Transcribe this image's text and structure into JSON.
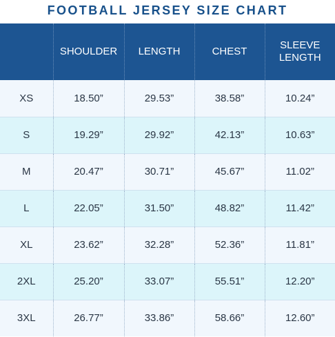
{
  "title": "FOOTBALL JERSEY SIZE CHART",
  "colors": {
    "title": "#17508a",
    "header_bg": "#1d5592",
    "row_light": "#f1f7fd",
    "row_cyan": "#dcf5fa"
  },
  "table": {
    "headers": [
      "",
      "SHOULDER",
      "LENGTH",
      "CHEST",
      "SLEEVE\nLENGTH"
    ],
    "header_lines": [
      [
        ""
      ],
      [
        "SHOULDER"
      ],
      [
        "LENGTH"
      ],
      [
        "CHEST"
      ],
      [
        "SLEEVE",
        "LENGTH"
      ]
    ],
    "rows": [
      [
        "XS",
        "18.50”",
        "29.53”",
        "38.58”",
        "10.24”"
      ],
      [
        "S",
        "19.29”",
        "29.92”",
        "42.13”",
        "10.63”"
      ],
      [
        "M",
        "20.47”",
        "30.71”",
        "45.67”",
        "11.02”"
      ],
      [
        "L",
        "22.05”",
        "31.50”",
        "48.82”",
        "11.42”"
      ],
      [
        "XL",
        "23.62”",
        "32.28”",
        "52.36”",
        "11.81”"
      ],
      [
        "2XL",
        "25.20”",
        "33.07”",
        "55.51”",
        "12.20”"
      ],
      [
        "3XL",
        "26.77”",
        "33.86”",
        "58.66”",
        "12.60”"
      ]
    ]
  }
}
